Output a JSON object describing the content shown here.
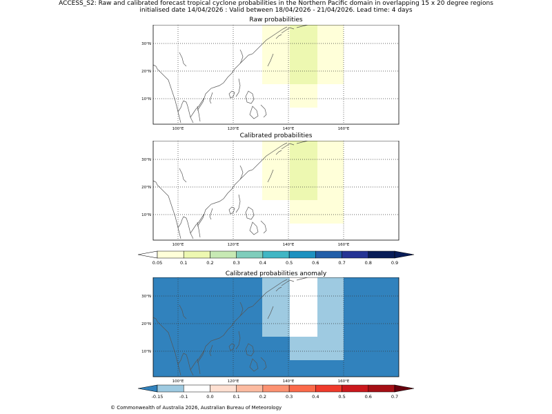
{
  "title": {
    "line1": "ACCESS_S2: Raw and calibrated forecast tropical cyclone probabilities in the Northern Pacific domain in overlapping 15 x 20 degree regions",
    "line2": "initialised date 14/04/2026 :  Valid between 18/04/2026 - 21/04/2026. Lead time: 4 days"
  },
  "footer": "© Commonwealth of Australia 2026, Australian Bureau of Meteorology",
  "map_axes": {
    "lon_ticks": [
      "100°E",
      "120°E",
      "140°E",
      "160°E"
    ],
    "lat_ticks": [
      "10°N",
      "20°N",
      "30°N"
    ]
  },
  "panels": {
    "raw": {
      "title": "Raw probabilities"
    },
    "calibrated": {
      "title": "Calibrated probabilities"
    },
    "anomaly": {
      "title": "Calibrated probabilities anomaly"
    }
  },
  "colorbars": {
    "probability": {
      "labels": [
        "0.05",
        "0.1",
        "0.2",
        "0.3",
        "0.4",
        "0.5",
        "0.6",
        "0.7",
        "0.8",
        "0.9"
      ],
      "colors": [
        "#ffffd9",
        "#edf8b1",
        "#c7e9b4",
        "#7fcdbb",
        "#41b6c4",
        "#1d91c0",
        "#225ea8",
        "#253494",
        "#081d58"
      ],
      "under_color": "#ffffff",
      "over_color": "#081d58"
    },
    "anomaly": {
      "labels": [
        "-0.15",
        "-0.1",
        "0.0",
        "0.1",
        "0.2",
        "0.3",
        "0.4",
        "0.5",
        "0.6",
        "0.7"
      ],
      "colors": [
        "#9ecae1",
        "#ffffff",
        "#fee0d2",
        "#fcbba1",
        "#fc9272",
        "#fb6a4a",
        "#ef3b2c",
        "#cb181d",
        "#a50f15"
      ],
      "under_color": "#3182bd",
      "over_color": "#67000d"
    }
  },
  "colors": {
    "prob_lightest": "#ffffd9",
    "prob_light_green": "#edf8b1",
    "anomaly_background": "#3182bd",
    "anomaly_light_blue": "#9ecae1",
    "coast": "#555555"
  }
}
